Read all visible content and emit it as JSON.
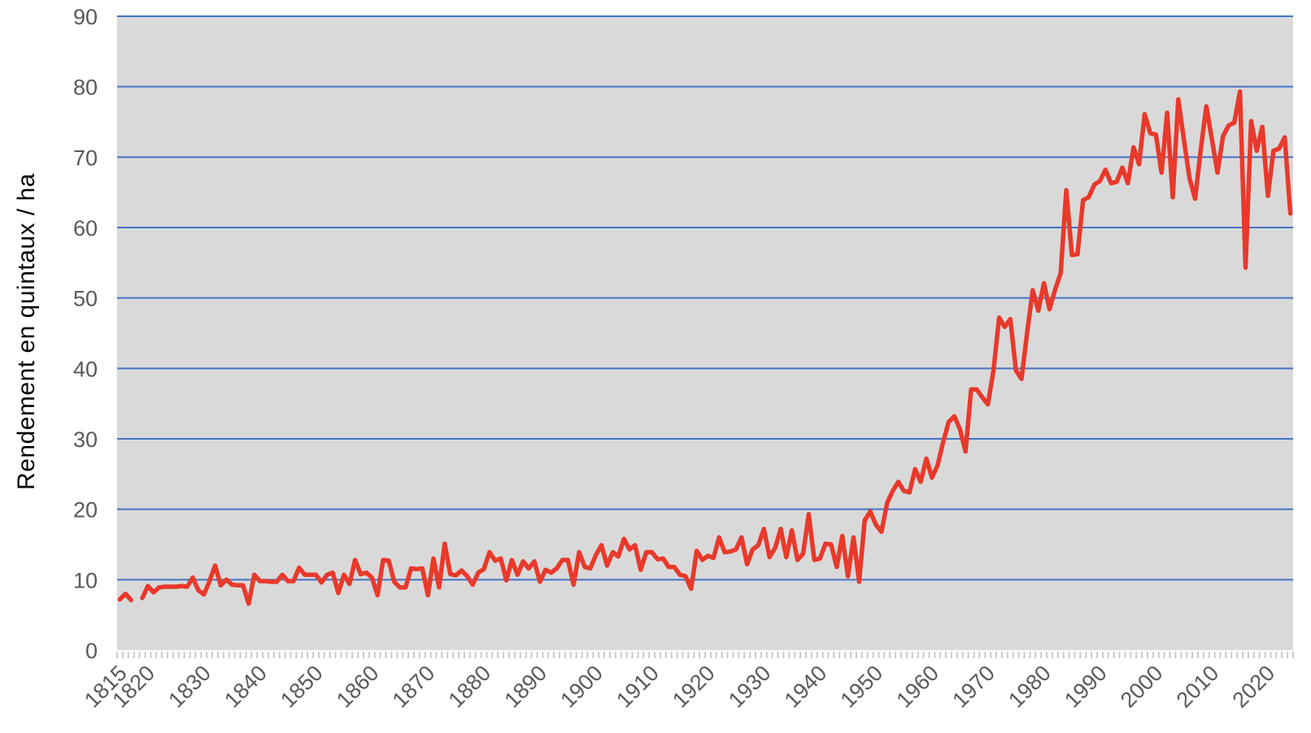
{
  "chart_data": {
    "type": "line",
    "title": "",
    "xlabel": "",
    "ylabel": "Rendement en quintaux / ha",
    "ylim": [
      0,
      90
    ],
    "y_ticks": [
      0,
      10,
      20,
      30,
      40,
      50,
      60,
      70,
      80,
      90
    ],
    "x_tick_labels": [
      "1815",
      "1820",
      "1830",
      "1840",
      "1850",
      "1860",
      "1870",
      "1880",
      "1890",
      "1900",
      "1910",
      "1920",
      "1930",
      "1940",
      "1950",
      "1960",
      "1970",
      "1980",
      "1990",
      "2000",
      "2010",
      "2020"
    ],
    "grid": "horizontal-only",
    "legend": "none",
    "x_start_year": 1815,
    "x_end_year": 2024,
    "minor_ticks_every_year": true,
    "note_gap_years": [
      1818
    ],
    "series": [
      {
        "name": "Rendement en quintaux / ha",
        "color": "#e8392b",
        "x": [
          1815,
          1816,
          1817,
          1818,
          1819,
          1820,
          1821,
          1822,
          1823,
          1824,
          1825,
          1826,
          1827,
          1828,
          1829,
          1830,
          1831,
          1832,
          1833,
          1834,
          1835,
          1836,
          1837,
          1838,
          1839,
          1840,
          1841,
          1842,
          1843,
          1844,
          1845,
          1846,
          1847,
          1848,
          1849,
          1850,
          1851,
          1852,
          1853,
          1854,
          1855,
          1856,
          1857,
          1858,
          1859,
          1860,
          1861,
          1862,
          1863,
          1864,
          1865,
          1866,
          1867,
          1868,
          1869,
          1870,
          1871,
          1872,
          1873,
          1874,
          1875,
          1876,
          1877,
          1878,
          1879,
          1880,
          1881,
          1882,
          1883,
          1884,
          1885,
          1886,
          1887,
          1888,
          1889,
          1890,
          1891,
          1892,
          1893,
          1894,
          1895,
          1896,
          1897,
          1898,
          1899,
          1900,
          1901,
          1902,
          1903,
          1904,
          1905,
          1906,
          1907,
          1908,
          1909,
          1910,
          1911,
          1912,
          1913,
          1914,
          1915,
          1916,
          1917,
          1918,
          1919,
          1920,
          1921,
          1922,
          1923,
          1924,
          1925,
          1926,
          1927,
          1928,
          1929,
          1930,
          1931,
          1932,
          1933,
          1934,
          1935,
          1936,
          1937,
          1938,
          1939,
          1940,
          1941,
          1942,
          1943,
          1944,
          1945,
          1946,
          1947,
          1948,
          1949,
          1950,
          1951,
          1952,
          1953,
          1954,
          1955,
          1956,
          1957,
          1958,
          1959,
          1960,
          1961,
          1962,
          1963,
          1964,
          1965,
          1966,
          1967,
          1968,
          1969,
          1970,
          1971,
          1972,
          1973,
          1974,
          1975,
          1976,
          1977,
          1978,
          1979,
          1980,
          1981,
          1982,
          1983,
          1984,
          1985,
          1986,
          1987,
          1988,
          1989,
          1990,
          1991,
          1992,
          1993,
          1994,
          1995,
          1996,
          1997,
          1998,
          1999,
          2000,
          2001,
          2002,
          2003,
          2004,
          2005,
          2006,
          2007,
          2008,
          2009,
          2010,
          2011,
          2012,
          2013,
          2014,
          2015,
          2016,
          2017,
          2018,
          2019,
          2020,
          2021,
          2022,
          2023,
          2024
        ],
        "values": [
          7.2,
          8.0,
          7.1,
          null,
          7.4,
          9.1,
          8.2,
          8.9,
          9.0,
          9.0,
          9.0,
          9.1,
          9.0,
          10.3,
          8.5,
          7.9,
          9.8,
          12.0,
          9.2,
          10.0,
          9.3,
          9.2,
          9.2,
          6.6,
          10.7,
          9.8,
          9.8,
          9.7,
          9.7,
          10.7,
          9.8,
          9.8,
          11.7,
          10.7,
          10.7,
          10.7,
          9.6,
          10.7,
          11.0,
          8.1,
          10.7,
          9.4,
          12.8,
          10.8,
          11.0,
          10.3,
          7.8,
          12.8,
          12.7,
          9.7,
          8.9,
          8.9,
          11.6,
          11.5,
          11.6,
          7.8,
          13.0,
          8.9,
          15.1,
          10.8,
          10.6,
          11.3,
          10.5,
          9.3,
          11.0,
          11.5,
          13.9,
          12.7,
          13.0,
          9.9,
          12.8,
          10.7,
          12.6,
          11.6,
          12.6,
          9.7,
          11.4,
          11.0,
          11.6,
          12.8,
          12.8,
          9.3,
          13.9,
          11.8,
          11.6,
          13.5,
          14.9,
          12.0,
          13.9,
          13.3,
          15.8,
          14.3,
          14.9,
          11.4,
          13.9,
          13.9,
          12.9,
          13.0,
          11.8,
          11.8,
          10.7,
          10.5,
          8.7,
          14.1,
          12.8,
          13.4,
          13.1,
          16.0,
          13.9,
          14.0,
          14.3,
          16.0,
          12.2,
          14.3,
          14.9,
          17.2,
          13.2,
          14.5,
          17.2,
          13.2,
          17.0,
          12.8,
          13.7,
          19.3,
          12.8,
          13.0,
          15.1,
          15.0,
          11.8,
          16.2,
          10.5,
          16.0,
          9.7,
          18.4,
          19.7,
          17.8,
          16.8,
          20.9,
          22.6,
          23.9,
          22.6,
          22.4,
          25.7,
          23.9,
          27.2,
          24.5,
          26.2,
          29.5,
          32.4,
          33.2,
          31.4,
          28.2,
          37.0,
          37.0,
          35.9,
          34.9,
          39.7,
          47.2,
          45.9,
          47.0,
          39.7,
          38.5,
          45.0,
          51.1,
          48.2,
          52.1,
          48.4,
          51.2,
          53.5,
          65.3,
          56.1,
          56.2,
          63.9,
          64.3,
          66.1,
          66.6,
          68.2,
          66.3,
          66.5,
          68.5,
          66.3,
          71.4,
          69.0,
          76.1,
          73.4,
          73.2,
          67.8,
          76.3,
          64.3,
          78.2,
          72.5,
          67.0,
          64.1,
          71.0,
          77.2,
          72.5,
          67.8,
          73.0,
          74.5,
          74.9,
          79.3,
          54.3,
          75.1,
          70.9,
          74.3,
          64.5,
          70.9,
          71.2,
          72.8,
          62.0
        ]
      }
    ]
  },
  "style": {
    "plot_background": "#d9d9d9",
    "page_background": "#ffffff",
    "gridline_color": "#4472c4",
    "line_color": "#e8392b",
    "tick_label_color": "#595959",
    "axis_title_color": "#000000",
    "minor_tick_color": "#c9c9c9"
  }
}
